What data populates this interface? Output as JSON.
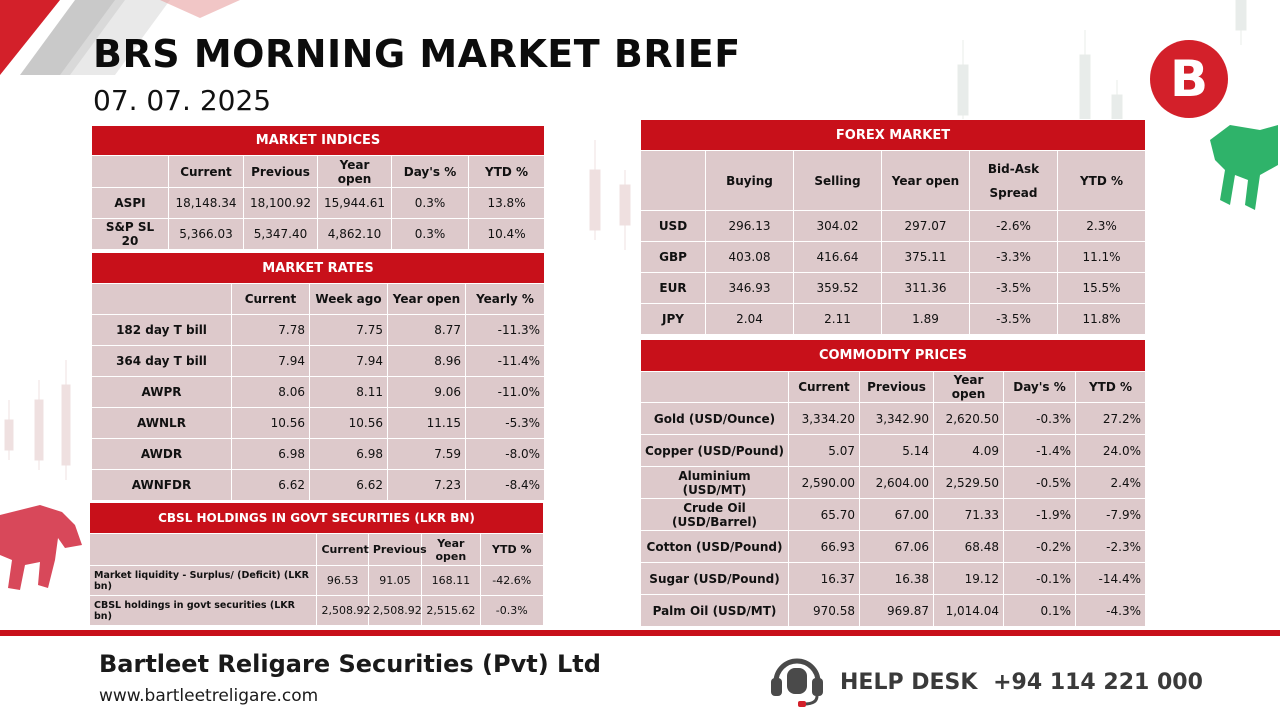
{
  "title": "BRS MORNING MARKET BRIEF",
  "date": "07. 07. 2025",
  "logo_letter": "B",
  "market_indices": {
    "header": "MARKET INDICES",
    "columns": [
      "Current",
      "Previous",
      "Year open",
      "Day's %",
      "YTD %"
    ],
    "rows": [
      {
        "label": "ASPI",
        "values": [
          "18,148.34",
          "18,100.92",
          "15,944.61",
          "0.3%",
          "13.8%"
        ]
      },
      {
        "label": "S&P SL 20",
        "values": [
          "5,366.03",
          "5,347.40",
          "4,862.10",
          "0.3%",
          "10.4%"
        ]
      }
    ]
  },
  "market_rates": {
    "header": "MARKET RATES",
    "columns": [
      "Current",
      "Week ago",
      "Year open",
      "Yearly %"
    ],
    "rows": [
      {
        "label": "182 day T bill",
        "values": [
          "7.78",
          "7.75",
          "8.77",
          "-11.3%"
        ]
      },
      {
        "label": "364 day T bill",
        "values": [
          "7.94",
          "7.94",
          "8.96",
          "-11.4%"
        ]
      },
      {
        "label": "AWPR",
        "values": [
          "8.06",
          "8.11",
          "9.06",
          "-11.0%"
        ]
      },
      {
        "label": "AWNLR",
        "values": [
          "10.56",
          "10.56",
          "11.15",
          "-5.3%"
        ]
      },
      {
        "label": "AWDR",
        "values": [
          "6.98",
          "6.98",
          "7.59",
          "-8.0%"
        ]
      },
      {
        "label": "AWNFDR",
        "values": [
          "6.62",
          "6.62",
          "7.23",
          "-8.4%"
        ]
      }
    ]
  },
  "cbsl_holdings": {
    "header": "CBSL HOLDINGS IN GOVT SECURITIES (LKR BN)",
    "columns": [
      "Current",
      "Previous",
      "Year open",
      "YTD %"
    ],
    "rows": [
      {
        "label": "Market liquidity - Surplus/ (Deficit) (LKR bn)",
        "values": [
          "96.53",
          "91.05",
          "168.11",
          "-42.6%"
        ]
      },
      {
        "label": "CBSL holdings in govt securities (LKR bn)",
        "values": [
          "2,508.92",
          "2,508.92",
          "2,515.62",
          "-0.3%"
        ]
      }
    ]
  },
  "forex_market": {
    "header": "FOREX MARKET",
    "columns": [
      "Buying",
      "Selling",
      "Year open",
      "Bid-Ask Spread",
      "YTD %"
    ],
    "rows": [
      {
        "label": "USD",
        "values": [
          "296.13",
          "304.02",
          "297.07",
          "-2.6%",
          "2.3%"
        ]
      },
      {
        "label": "GBP",
        "values": [
          "403.08",
          "416.64",
          "375.11",
          "-3.3%",
          "11.1%"
        ]
      },
      {
        "label": "EUR",
        "values": [
          "346.93",
          "359.52",
          "311.36",
          "-3.5%",
          "15.5%"
        ]
      },
      {
        "label": "JPY",
        "values": [
          "2.04",
          "2.11",
          "1.89",
          "-3.5%",
          "11.8%"
        ]
      }
    ]
  },
  "commodity_prices": {
    "header": "COMMODITY PRICES",
    "columns": [
      "Current",
      "Previous",
      "Year open",
      "Day's %",
      "YTD %"
    ],
    "rows": [
      {
        "label": "Gold (USD/Ounce)",
        "values": [
          "3,334.20",
          "3,342.90",
          "2,620.50",
          "-0.3%",
          "27.2%"
        ]
      },
      {
        "label": "Copper (USD/Pound)",
        "values": [
          "5.07",
          "5.14",
          "4.09",
          "-1.4%",
          "24.0%"
        ]
      },
      {
        "label": "Aluminium (USD/MT)",
        "values": [
          "2,590.00",
          "2,604.00",
          "2,529.50",
          "-0.5%",
          "2.4%"
        ]
      },
      {
        "label": "Crude Oil (USD/Barrel)",
        "values": [
          "65.70",
          "67.00",
          "71.33",
          "-1.9%",
          "-7.9%"
        ]
      },
      {
        "label": "Cotton (USD/Pound)",
        "values": [
          "66.93",
          "67.06",
          "68.48",
          "-0.2%",
          "-2.3%"
        ]
      },
      {
        "label": "Sugar (USD/Pound)",
        "values": [
          "16.37",
          "16.38",
          "19.12",
          "-0.1%",
          "-14.4%"
        ]
      },
      {
        "label": "Palm Oil (USD/MT)",
        "values": [
          "970.58",
          "969.87",
          "1,014.04",
          "0.1%",
          "-4.3%"
        ]
      }
    ]
  },
  "footer": {
    "company": "Bartleet Religare Securities (Pvt) Ltd",
    "website": "www.bartleetreligare.com",
    "helpdesk_label": "HELP DESK",
    "helpdesk_phone": "+94 114 221 000"
  },
  "colors": {
    "accent": "#c8101a",
    "cell": "#ddc9cb"
  },
  "icons": [
    "brs-logo-icon",
    "bull-icon",
    "bear-icon",
    "headset-icon"
  ]
}
